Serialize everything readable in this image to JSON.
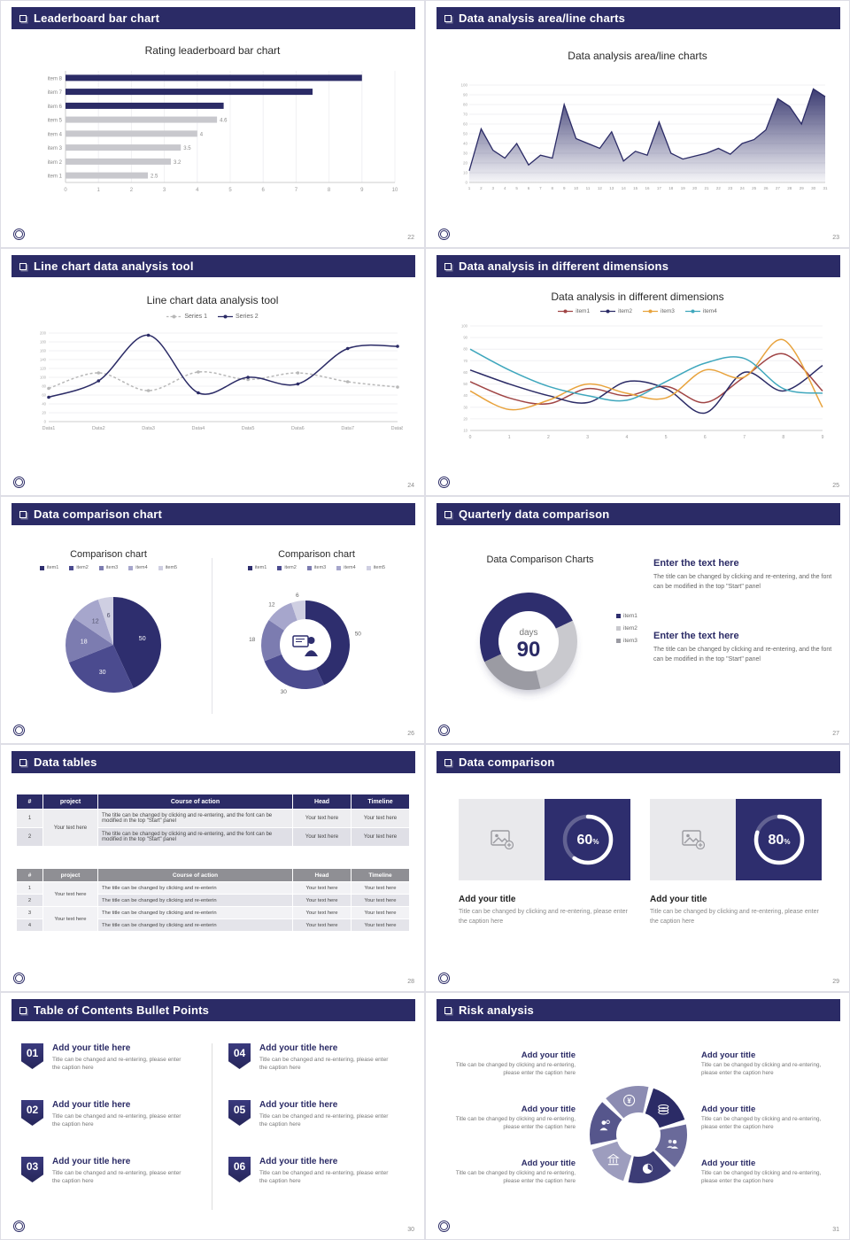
{
  "global": {
    "accent": "#2B2B66",
    "header_icon": "square-outline-icon",
    "logo": "emblem-logo"
  },
  "slides": {
    "s1": {
      "header": "Leaderboard bar chart",
      "page": "22"
    },
    "s2": {
      "header": "Data analysis area/line charts",
      "page": "23"
    },
    "s3": {
      "header": "Line chart data analysis tool",
      "page": "24"
    },
    "s4": {
      "header": "Data analysis in different dimensions",
      "page": "25"
    },
    "s5": {
      "header": "Data comparison chart",
      "page": "26"
    },
    "s6": {
      "header": "Quarterly data comparison",
      "page": "27",
      "blocks": [
        {
          "heading": "Enter the text here",
          "body": "The title can be changed by clicking and re-entering, and the font can be modified in the top \"Start\" panel"
        },
        {
          "heading": "Enter the text here",
          "body": "The title can be changed by clicking and re-entering, and the font can be modified in the top \"Start\" panel"
        }
      ]
    },
    "s7": {
      "header": "Data tables",
      "page": "28",
      "table1": {
        "headers": [
          "#",
          "project",
          "Course of action",
          "Head",
          "Timeline"
        ],
        "project": "Your text here",
        "rows": [
          {
            "num": "1",
            "course": "The title can be changed by clicking and re-entering, and the font can be modified in the top \"Start\" panel",
            "head": "Your text here",
            "timeline": "Your text here"
          },
          {
            "num": "2",
            "course": "The title can be changed by clicking and re-entering, and the font can be modified in the top \"Start\" panel",
            "head": "Your text here",
            "timeline": "Your text here"
          }
        ]
      },
      "table2": {
        "headers": [
          "#",
          "project",
          "Course of action",
          "Head",
          "Timeline"
        ],
        "projects": [
          "Your text here",
          "Your text here"
        ],
        "rows": [
          {
            "num": "1",
            "course": "The title can be changed by clicking and re-enterin",
            "head": "Your text here",
            "timeline": "Your text here"
          },
          {
            "num": "2",
            "course": "The title can be changed by clicking and re-enterin",
            "head": "Your text here",
            "timeline": "Your text here"
          },
          {
            "num": "3",
            "course": "The title can be changed by clicking and re-enterin",
            "head": "Your text here",
            "timeline": "Your text here"
          },
          {
            "num": "4",
            "course": "The title can be changed by clicking and re-enterin",
            "head": "Your text here",
            "timeline": "Your text here"
          }
        ]
      }
    },
    "s8": {
      "header": "Data comparison",
      "page": "29",
      "image_icon": "image-placeholder-icon",
      "cards": [
        {
          "percent": 60,
          "title": "Add your title",
          "caption": "Title can be changed by clicking and re-entering, please enter the caption here"
        },
        {
          "percent": 80,
          "title": "Add your title",
          "caption": "Title can be changed by clicking and re-entering, please enter the caption here"
        }
      ]
    },
    "s9": {
      "header": "Table of Contents Bullet Points",
      "page": "30",
      "items": [
        {
          "num": "01",
          "title": "Add your title here",
          "caption": "Title can be changed and re-entering, please enter the caption here"
        },
        {
          "num": "02",
          "title": "Add your title here",
          "caption": "Title can be changed and re-entering, please enter the caption here"
        },
        {
          "num": "03",
          "title": "Add your title here",
          "caption": "Title can be changed and re-entering, please enter the caption here"
        },
        {
          "num": "04",
          "title": "Add your title here",
          "caption": "Title can be changed and re-entering, please enter the caption here"
        },
        {
          "num": "05",
          "title": "Add your title here",
          "caption": "Title can be changed and re-entering, please enter the caption here"
        },
        {
          "num": "06",
          "title": "Add your title here",
          "caption": "Title can be changed and re-entering, please enter the caption here"
        }
      ]
    },
    "s10": {
      "header": "Risk analysis",
      "page": "31",
      "icons": [
        "coins-icon",
        "people-icon",
        "pie-icon",
        "bank-icon",
        "person-icon",
        "yen-icon"
      ],
      "left": [
        {
          "title": "Add your title",
          "caption": "Title can be changed by clicking and re-entering, please enter the caption here"
        },
        {
          "title": "Add your title",
          "caption": "Title can be changed by clicking and re-entering, please enter the caption here"
        },
        {
          "title": "Add your title",
          "caption": "Title can be changed by clicking and re-entering, please enter the caption here"
        }
      ],
      "right": [
        {
          "title": "Add your title",
          "caption": "Title can be changed by clicking and re-entering, please enter the caption here"
        },
        {
          "title": "Add your title",
          "caption": "Title can be changed by clicking and re-entering, please enter the caption here"
        },
        {
          "title": "Add your title",
          "caption": "Title can be changed by clicking and re-entering, please enter the caption here"
        }
      ]
    }
  },
  "chart_data": [
    {
      "type": "bar",
      "orientation": "horizontal",
      "title": "Rating leaderboard bar chart",
      "categories": [
        "item 1",
        "item 2",
        "item 3",
        "item 4",
        "item 5",
        "item 6",
        "item 7",
        "item 8"
      ],
      "values": [
        2.5,
        3.2,
        3.5,
        4,
        4.6,
        4.8,
        7.5,
        9
      ],
      "value_labels": [
        "2.5",
        "3.2",
        "3.5",
        "4",
        "4.6",
        "",
        "",
        ""
      ],
      "highlight_from_index": 5,
      "bar_color": "#C8C8CD",
      "highlight_color": "#2B2B66",
      "xlim": [
        0,
        10
      ]
    },
    {
      "type": "area",
      "title": "Data analysis area/line charts",
      "x": [
        1,
        2,
        3,
        4,
        5,
        6,
        7,
        8,
        9,
        10,
        11,
        12,
        13,
        14,
        15,
        16,
        17,
        18,
        19,
        20,
        21,
        22,
        23,
        24,
        25,
        26,
        27,
        28,
        29,
        30,
        31
      ],
      "values": [
        12,
        55,
        33,
        25,
        40,
        18,
        28,
        25,
        80,
        45,
        40,
        35,
        52,
        22,
        32,
        28,
        62,
        30,
        24,
        27,
        30,
        35,
        29,
        40,
        44,
        54,
        86,
        78,
        60,
        96,
        88
      ],
      "ylim": [
        0,
        100
      ],
      "color": "#2B2B66"
    },
    {
      "type": "line",
      "smooth": true,
      "title": "Line chart data analysis tool",
      "categories": [
        "Data1",
        "Data2",
        "Data3",
        "Data4",
        "Data5",
        "Data6",
        "Data7",
        "Data8"
      ],
      "series": [
        {
          "name": "Series 1",
          "color": "#B8B8B8",
          "dashed": true,
          "values": [
            75,
            110,
            70,
            112,
            95,
            110,
            90,
            78
          ]
        },
        {
          "name": "Series 2",
          "color": "#2B2B66",
          "dashed": false,
          "values": [
            55,
            92,
            195,
            65,
            100,
            85,
            165,
            170
          ]
        }
      ],
      "ylim": [
        0,
        200
      ]
    },
    {
      "type": "line",
      "smooth": true,
      "title": "Data analysis in different dimensions",
      "x": [
        0,
        1,
        2,
        3,
        4,
        5,
        6,
        7,
        8,
        9
      ],
      "series": [
        {
          "name": "item1",
          "color": "#A04545",
          "values": [
            52,
            38,
            33,
            46,
            40,
            48,
            34,
            56,
            76,
            44
          ]
        },
        {
          "name": "item2",
          "color": "#2B2B66",
          "values": [
            62,
            50,
            40,
            34,
            52,
            46,
            25,
            60,
            44,
            66
          ]
        },
        {
          "name": "item3",
          "color": "#E8A33D",
          "values": [
            44,
            28,
            36,
            50,
            42,
            38,
            62,
            56,
            88,
            30
          ]
        },
        {
          "name": "item4",
          "color": "#3FA7BD",
          "values": [
            80,
            62,
            48,
            40,
            36,
            52,
            68,
            72,
            46,
            42
          ]
        }
      ],
      "ylim": [
        10,
        100
      ]
    },
    {
      "type": "pie",
      "titles": [
        "Comparison chart",
        "Comparison chart"
      ],
      "labels": [
        "item1",
        "item2",
        "item3",
        "item4",
        "item5"
      ],
      "values": [
        50,
        30,
        18,
        12,
        6
      ],
      "colors": [
        "#2E2E6E",
        "#4B4B8F",
        "#7C7CB0",
        "#A6A6CC",
        "#CFCFE2"
      ],
      "variants": [
        "pie",
        "donut"
      ],
      "center_icon": "presenter-icon"
    },
    {
      "type": "donut",
      "title": "Data Comparison Charts",
      "labels": [
        "item1",
        "item2",
        "item3"
      ],
      "values": [
        50,
        28,
        22
      ],
      "colors": [
        "#2E2E6E",
        "#C9C9CE",
        "#9B9BA3"
      ],
      "center_label": "days",
      "center_value": "90"
    },
    {
      "type": "progress-donut",
      "values": [
        60,
        80
      ],
      "unit": "%"
    }
  ]
}
